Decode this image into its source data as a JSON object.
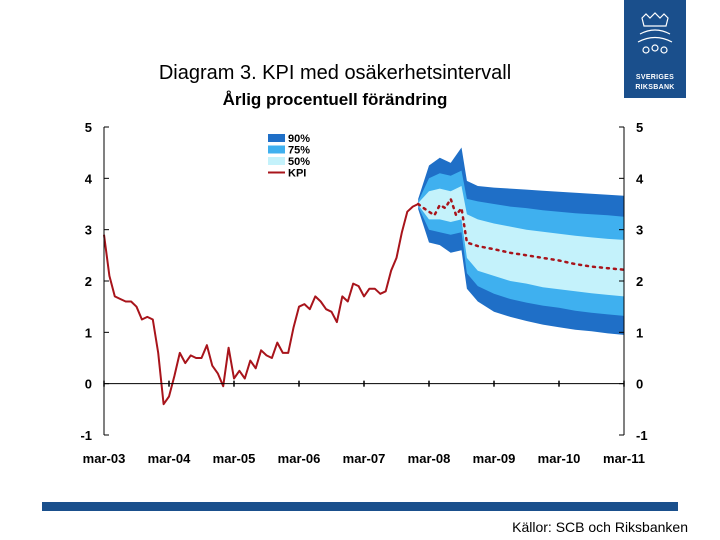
{
  "page": {
    "title": "Diagram 3. KPI med osäkerhetsintervall",
    "subtitle": "Årlig procentuell förändring",
    "source": "Källor: SCB och Riksbanken",
    "logo_line1": "SVERIGES",
    "logo_line2": "RIKSBANK"
  },
  "colors": {
    "band90": "#1f6fc7",
    "band75": "#3fb0ef",
    "band50": "#c4f2fb",
    "kpi": "#a8141b",
    "brand": "#1a4f8c"
  },
  "chart_data": {
    "type": "area",
    "title": "Diagram 3. KPI med osäkerhetsintervall",
    "subtitle": "Årlig procentuell förändring",
    "xlabel": "",
    "ylabel": "",
    "x_start": "2003-03",
    "x_end": "2011-03",
    "x_ticks": [
      "mar-03",
      "mar-04",
      "mar-05",
      "mar-06",
      "mar-07",
      "mar-08",
      "mar-09",
      "mar-10",
      "mar-11"
    ],
    "ylim": [
      -1,
      5
    ],
    "y_ticks": [
      -1,
      0,
      1,
      2,
      3,
      4,
      5
    ],
    "y_axis_right": true,
    "grid": false,
    "legend_position": "top-center",
    "legend": [
      "90%",
      "75%",
      "50%",
      "KPI"
    ],
    "kpi_outcome": {
      "name": "KPI",
      "x": [
        "2003-03",
        "2003-04",
        "2003-05",
        "2003-06",
        "2003-07",
        "2003-08",
        "2003-09",
        "2003-10",
        "2003-11",
        "2003-12",
        "2004-01",
        "2004-02",
        "2004-03",
        "2004-04",
        "2004-05",
        "2004-06",
        "2004-07",
        "2004-08",
        "2004-09",
        "2004-10",
        "2004-11",
        "2004-12",
        "2005-01",
        "2005-02",
        "2005-03",
        "2005-04",
        "2005-05",
        "2005-06",
        "2005-07",
        "2005-08",
        "2005-09",
        "2005-10",
        "2005-11",
        "2005-12",
        "2006-01",
        "2006-02",
        "2006-03",
        "2006-04",
        "2006-05",
        "2006-06",
        "2006-07",
        "2006-08",
        "2006-09",
        "2006-10",
        "2006-11",
        "2006-12",
        "2007-01",
        "2007-02",
        "2007-03",
        "2007-04",
        "2007-05",
        "2007-06",
        "2007-07",
        "2007-08",
        "2007-09",
        "2007-10",
        "2007-11",
        "2007-12",
        "2008-01"
      ],
      "y": [
        2.9,
        2.1,
        1.7,
        1.65,
        1.6,
        1.6,
        1.5,
        1.25,
        1.3,
        1.25,
        0.6,
        -0.4,
        -0.25,
        0.15,
        0.6,
        0.4,
        0.55,
        0.5,
        0.5,
        0.75,
        0.35,
        0.2,
        -0.05,
        0.7,
        0.1,
        0.25,
        0.1,
        0.45,
        0.3,
        0.65,
        0.55,
        0.5,
        0.8,
        0.6,
        0.6,
        1.1,
        1.5,
        1.55,
        1.45,
        1.7,
        1.6,
        1.45,
        1.4,
        1.2,
        1.7,
        1.6,
        1.95,
        1.9,
        1.7,
        1.85,
        1.85,
        1.75,
        1.8,
        2.2,
        2.45,
        2.95,
        3.35,
        3.45,
        3.5
      ]
    },
    "kpi_forecast": {
      "x": [
        "2008-01",
        "2008-02",
        "2008-03",
        "2008-04",
        "2008-05",
        "2008-06",
        "2008-07",
        "2008-08",
        "2008-09",
        "2008-10",
        "2008-12",
        "2009-03",
        "2009-06",
        "2009-09",
        "2009-12",
        "2010-03",
        "2010-06",
        "2010-09",
        "2010-12",
        "2011-03"
      ],
      "y": [
        3.5,
        3.42,
        3.35,
        3.28,
        3.48,
        3.42,
        3.6,
        3.28,
        3.42,
        2.75,
        2.68,
        2.62,
        2.55,
        2.5,
        2.45,
        2.4,
        2.33,
        2.28,
        2.25,
        2.22
      ]
    },
    "bands": {
      "x": [
        "2008-01",
        "2008-03",
        "2008-05",
        "2008-07",
        "2008-09",
        "2008-10",
        "2008-12",
        "2009-03",
        "2009-06",
        "2009-09",
        "2009-12",
        "2010-03",
        "2010-06",
        "2010-09",
        "2010-12",
        "2011-03"
      ],
      "band90": {
        "upper": [
          3.6,
          4.25,
          4.4,
          4.3,
          4.6,
          3.95,
          3.85,
          3.82,
          3.8,
          3.78,
          3.76,
          3.74,
          3.72,
          3.7,
          3.68,
          3.66
        ],
        "lower": [
          3.4,
          2.75,
          2.7,
          2.55,
          2.6,
          1.85,
          1.6,
          1.4,
          1.3,
          1.22,
          1.15,
          1.1,
          1.05,
          1.02,
          0.98,
          0.95
        ]
      },
      "band75": {
        "upper": [
          3.55,
          4.0,
          4.1,
          4.05,
          4.15,
          3.6,
          3.55,
          3.5,
          3.45,
          3.42,
          3.38,
          3.35,
          3.32,
          3.3,
          3.28,
          3.25
        ],
        "lower": [
          3.45,
          3.0,
          2.95,
          2.9,
          2.95,
          2.15,
          1.9,
          1.75,
          1.65,
          1.58,
          1.52,
          1.48,
          1.42,
          1.38,
          1.35,
          1.32
        ]
      },
      "band50": {
        "upper": [
          3.52,
          3.75,
          3.8,
          3.75,
          3.85,
          3.3,
          3.2,
          3.12,
          3.06,
          3.0,
          2.96,
          2.92,
          2.88,
          2.85,
          2.82,
          2.8
        ],
        "lower": [
          3.48,
          3.2,
          3.2,
          3.15,
          3.2,
          2.45,
          2.2,
          2.1,
          2.0,
          1.95,
          1.88,
          1.84,
          1.8,
          1.76,
          1.73,
          1.7
        ]
      }
    }
  }
}
